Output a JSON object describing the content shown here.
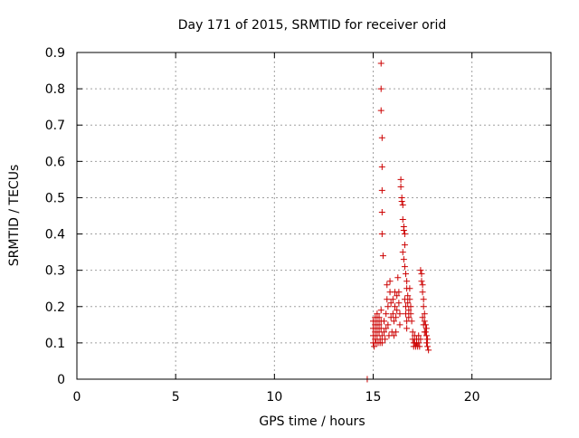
{
  "chart_data": {
    "type": "scatter",
    "title": "Day 171 of 2015, SRMTID for receiver orid",
    "xlabel": "GPS time / hours",
    "ylabel": "SRMTID / TECUs",
    "xlim": [
      0,
      24
    ],
    "ylim": [
      0,
      0.9
    ],
    "xticks": [
      0,
      5,
      10,
      15,
      20
    ],
    "yticks": [
      0,
      0.1,
      0.2,
      0.3,
      0.4,
      0.5,
      0.6,
      0.7,
      0.8,
      0.9
    ],
    "grid": true,
    "marker": "+",
    "color": "#cc0000",
    "series": [
      {
        "name": "SRMTID",
        "points": [
          [
            14.7,
            0.0
          ],
          [
            15.4,
            0.87
          ],
          [
            15.4,
            0.8
          ],
          [
            15.4,
            0.74
          ],
          [
            15.45,
            0.665
          ],
          [
            15.45,
            0.585
          ],
          [
            15.45,
            0.52
          ],
          [
            15.45,
            0.46
          ],
          [
            15.45,
            0.4
          ],
          [
            15.5,
            0.34
          ],
          [
            15.0,
            0.16
          ],
          [
            15.0,
            0.14
          ],
          [
            15.0,
            0.12
          ],
          [
            15.0,
            0.1
          ],
          [
            15.05,
            0.09
          ],
          [
            15.1,
            0.17
          ],
          [
            15.1,
            0.15
          ],
          [
            15.1,
            0.13
          ],
          [
            15.1,
            0.11
          ],
          [
            15.15,
            0.1
          ],
          [
            15.2,
            0.18
          ],
          [
            15.2,
            0.16
          ],
          [
            15.2,
            0.14
          ],
          [
            15.2,
            0.12
          ],
          [
            15.25,
            0.1
          ],
          [
            15.3,
            0.17
          ],
          [
            15.3,
            0.15
          ],
          [
            15.3,
            0.13
          ],
          [
            15.35,
            0.11
          ],
          [
            15.35,
            0.1
          ],
          [
            15.4,
            0.19
          ],
          [
            15.4,
            0.16
          ],
          [
            15.4,
            0.14
          ],
          [
            15.45,
            0.12
          ],
          [
            15.45,
            0.1
          ],
          [
            15.55,
            0.16
          ],
          [
            15.55,
            0.13
          ],
          [
            15.6,
            0.11
          ],
          [
            15.65,
            0.18
          ],
          [
            15.65,
            0.14
          ],
          [
            15.7,
            0.26
          ],
          [
            15.7,
            0.22
          ],
          [
            15.75,
            0.2
          ],
          [
            15.75,
            0.15
          ],
          [
            15.8,
            0.12
          ],
          [
            15.85,
            0.27
          ],
          [
            15.85,
            0.24
          ],
          [
            15.9,
            0.21
          ],
          [
            15.9,
            0.17
          ],
          [
            15.95,
            0.13
          ],
          [
            16.0,
            0.22
          ],
          [
            16.0,
            0.18
          ],
          [
            16.05,
            0.16
          ],
          [
            16.05,
            0.12
          ],
          [
            16.1,
            0.24
          ],
          [
            16.1,
            0.2
          ],
          [
            16.15,
            0.17
          ],
          [
            16.15,
            0.13
          ],
          [
            16.2,
            0.23
          ],
          [
            16.2,
            0.19
          ],
          [
            16.25,
            0.28
          ],
          [
            16.3,
            0.24
          ],
          [
            16.3,
            0.21
          ],
          [
            16.35,
            0.18
          ],
          [
            16.35,
            0.15
          ],
          [
            16.4,
            0.55
          ],
          [
            16.4,
            0.53
          ],
          [
            16.45,
            0.5
          ],
          [
            16.45,
            0.49
          ],
          [
            16.5,
            0.48
          ],
          [
            16.5,
            0.44
          ],
          [
            16.55,
            0.42
          ],
          [
            16.55,
            0.41
          ],
          [
            16.6,
            0.4
          ],
          [
            16.6,
            0.37
          ],
          [
            16.5,
            0.35
          ],
          [
            16.55,
            0.33
          ],
          [
            16.6,
            0.31
          ],
          [
            16.65,
            0.29
          ],
          [
            16.7,
            0.27
          ],
          [
            16.7,
            0.25
          ],
          [
            16.75,
            0.23
          ],
          [
            16.75,
            0.21
          ],
          [
            16.8,
            0.19
          ],
          [
            16.8,
            0.17
          ],
          [
            16.85,
            0.25
          ],
          [
            16.85,
            0.22
          ],
          [
            16.9,
            0.2
          ],
          [
            16.9,
            0.18
          ],
          [
            16.95,
            0.16
          ],
          [
            16.6,
            0.22
          ],
          [
            16.65,
            0.2
          ],
          [
            16.65,
            0.18
          ],
          [
            16.7,
            0.16
          ],
          [
            16.7,
            0.14
          ],
          [
            17.0,
            0.13
          ],
          [
            17.0,
            0.11
          ],
          [
            17.05,
            0.1
          ],
          [
            17.05,
            0.09
          ],
          [
            17.1,
            0.12
          ],
          [
            17.1,
            0.1
          ],
          [
            17.15,
            0.09
          ],
          [
            17.2,
            0.11
          ],
          [
            17.2,
            0.1
          ],
          [
            17.25,
            0.09
          ],
          [
            17.3,
            0.12
          ],
          [
            17.3,
            0.1
          ],
          [
            17.35,
            0.09
          ],
          [
            17.4,
            0.11
          ],
          [
            17.4,
            0.3
          ],
          [
            17.45,
            0.29
          ],
          [
            17.45,
            0.27
          ],
          [
            17.5,
            0.26
          ],
          [
            17.5,
            0.24
          ],
          [
            17.55,
            0.22
          ],
          [
            17.55,
            0.2
          ],
          [
            17.6,
            0.18
          ],
          [
            17.6,
            0.16
          ],
          [
            17.65,
            0.15
          ],
          [
            17.65,
            0.13
          ],
          [
            17.7,
            0.12
          ],
          [
            17.7,
            0.1
          ],
          [
            17.75,
            0.09
          ],
          [
            17.8,
            0.08
          ],
          [
            17.5,
            0.17
          ],
          [
            17.55,
            0.15
          ],
          [
            17.6,
            0.13
          ],
          [
            17.7,
            0.14
          ],
          [
            17.75,
            0.11
          ]
        ]
      }
    ]
  }
}
